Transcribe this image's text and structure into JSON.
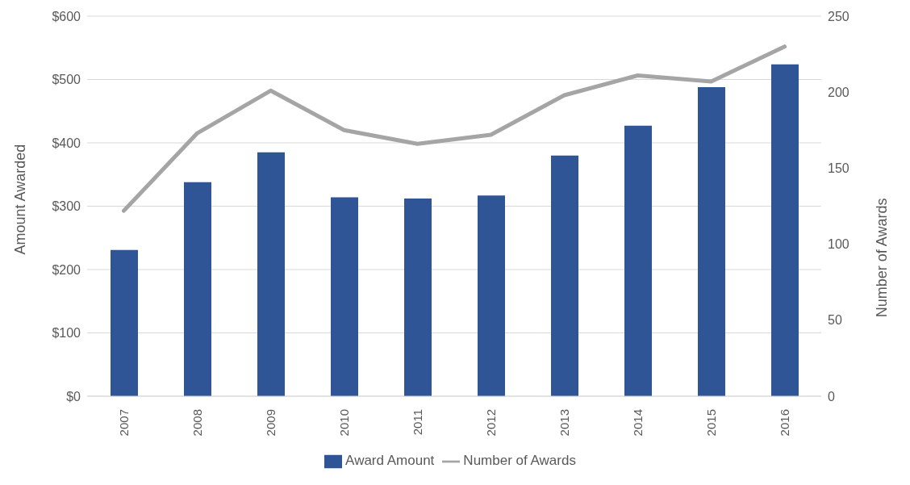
{
  "chart_data": {
    "type": "bar",
    "ylabel": "Amount Awarded",
    "y2label": "Number of Awards",
    "categories": [
      "2007",
      "2008",
      "2009",
      "2010",
      "2011",
      "2012",
      "2013",
      "2014",
      "2015",
      "2016"
    ],
    "series": [
      {
        "name": "Award Amount",
        "color": "#2f5597",
        "values": [
          231,
          338,
          385,
          314,
          312,
          317,
          380,
          427,
          488,
          524
        ]
      },
      {
        "name": "Number of Awards",
        "type": "line",
        "axis": "y2",
        "color": "#a5a5a5",
        "values": [
          122,
          173,
          201,
          175,
          166,
          172,
          198,
          211,
          207,
          230
        ]
      }
    ],
    "ylim": [
      0,
      600
    ],
    "yticks": [
      {
        "value": 0,
        "label": "$0"
      },
      {
        "value": 100,
        "label": "$100"
      },
      {
        "value": 200,
        "label": "$200"
      },
      {
        "value": 300,
        "label": "$300"
      },
      {
        "value": 400,
        "label": "$400"
      },
      {
        "value": 500,
        "label": "$500"
      },
      {
        "value": 600,
        "label": "$600"
      }
    ],
    "y2lim": [
      0,
      250
    ],
    "y2ticks": [
      0,
      50,
      100,
      150,
      200,
      250
    ],
    "grid": "y",
    "legend": "bottom",
    "marker": "none",
    "line_style": "solid"
  }
}
